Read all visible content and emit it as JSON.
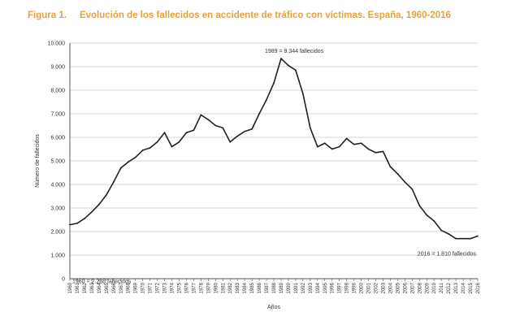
{
  "colors": {
    "title": "#e8a13a",
    "line": "#222222",
    "grid": "#c9c9c9",
    "axis": "#555555",
    "text": "#333333"
  },
  "title": {
    "figure": "Figura 1.",
    "text": "Evolución de los fallecidos en accidente de tráfico con víctimas. España, 1960-2016"
  },
  "chart_data": {
    "type": "line",
    "title": "Evolución de los fallecidos en accidente de tráfico con víctimas. España, 1960-2016",
    "xlabel": "Años",
    "ylabel": "Número de fallecidos",
    "ylim": [
      0,
      10000
    ],
    "grid": true,
    "yticks": [
      "0",
      "1.000",
      "2.000",
      "3.000",
      "4.000",
      "5.000",
      "6.000",
      "7.000",
      "8.000",
      "9.000",
      "10.000"
    ],
    "x": [
      1960,
      1961,
      1962,
      1963,
      1964,
      1965,
      1966,
      1967,
      1968,
      1969,
      1970,
      1971,
      1972,
      1973,
      1974,
      1975,
      1976,
      1977,
      1978,
      1979,
      1980,
      1981,
      1982,
      1983,
      1984,
      1985,
      1986,
      1987,
      1988,
      1989,
      1990,
      1991,
      1992,
      1993,
      1994,
      1995,
      1996,
      1997,
      1998,
      1999,
      2000,
      2001,
      2002,
      2003,
      2004,
      2005,
      2006,
      2007,
      2008,
      2009,
      2010,
      2011,
      2012,
      2013,
      2014,
      2015,
      2016
    ],
    "series": [
      {
        "name": "Fallecidos",
        "values": [
          2288,
          2350,
          2550,
          2830,
          3150,
          3550,
          4100,
          4700,
          4950,
          5150,
          5450,
          5550,
          5800,
          6200,
          5600,
          5800,
          6200,
          6300,
          6950,
          6750,
          6500,
          6400,
          5800,
          6050,
          6250,
          6350,
          7000,
          7600,
          8300,
          9344,
          9050,
          8850,
          7850,
          6400,
          5600,
          5750,
          5500,
          5600,
          5950,
          5700,
          5750,
          5500,
          5350,
          5400,
          4750,
          4450,
          4100,
          3800,
          3100,
          2700,
          2450,
          2050,
          1900,
          1700,
          1700,
          1700,
          1810
        ]
      }
    ],
    "annotations": [
      {
        "label": "1989 = 9.344 fallecidos",
        "x": 1989,
        "y": 9344
      },
      {
        "label": "1960 = 2.288 fallecidos",
        "x": 1960,
        "y": 2288
      },
      {
        "label": "2016 = 1.810 fallecidos",
        "x": 2016,
        "y": 1810
      }
    ]
  }
}
